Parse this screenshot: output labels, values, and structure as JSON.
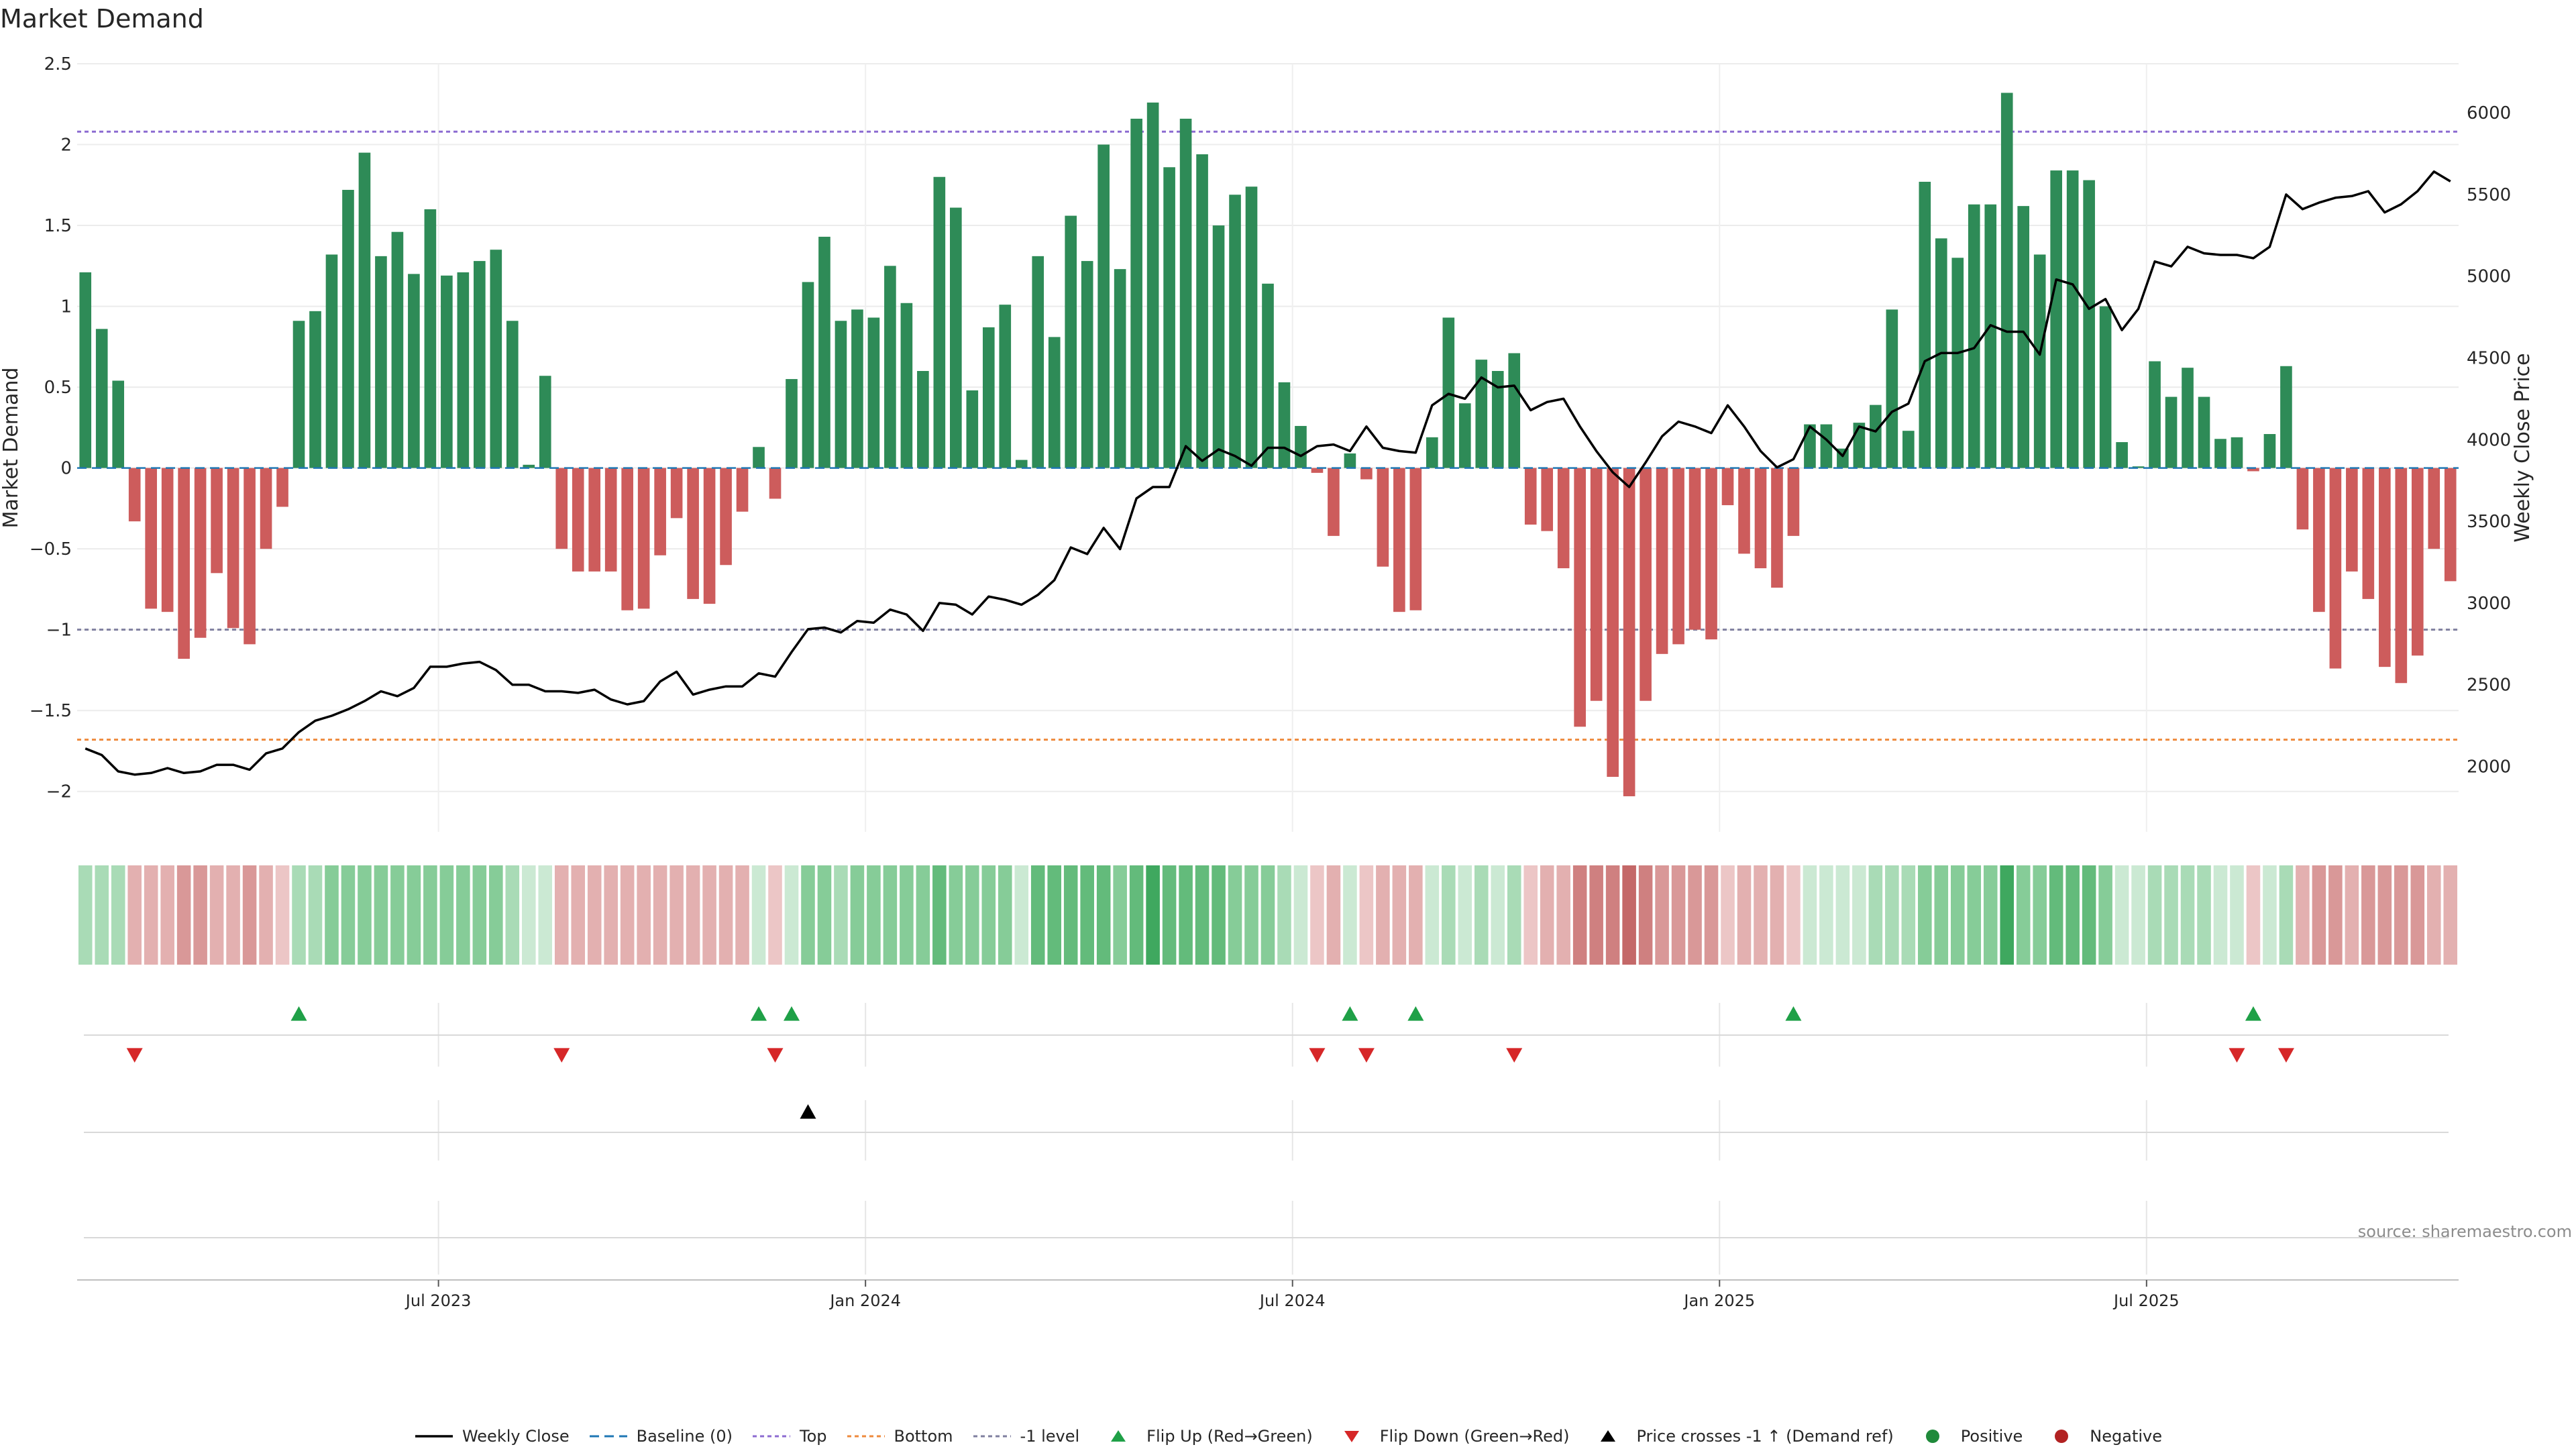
{
  "chart_data": {
    "type": "bar+line",
    "title": "Market Demand",
    "ylabel_left": "Market Demand",
    "ylabel_right": "Weekly Close Price",
    "ylim_left": [
      -2.25,
      2.5
    ],
    "ylim_right": [
      1600,
      6300
    ],
    "yticks_left": [
      2.5,
      2,
      1.5,
      1,
      0.5,
      0,
      -0.5,
      -1,
      -1.5,
      -2
    ],
    "yticks_left_labels": [
      "2.5",
      "2",
      "1.5",
      "1",
      "0.5",
      "0",
      "−0.5",
      "−1",
      "−1.5",
      "−2"
    ],
    "yticks_right": [
      6000,
      5500,
      5000,
      4500,
      4000,
      3500,
      3000,
      2500,
      2000
    ],
    "yticks_right_labels": [
      "6000",
      "5500",
      "5000",
      "4500",
      "4000",
      "3500",
      "3000",
      "2500",
      "2000"
    ],
    "reference_lines": {
      "top": 2.08,
      "bottom": -1.68,
      "minus_one": -1.0,
      "baseline": 0
    },
    "x_ticks": [
      {
        "index": 22,
        "label": "Jul 2023"
      },
      {
        "index": 48,
        "label": "Jan 2024"
      },
      {
        "index": 74,
        "label": "Jul 2024"
      },
      {
        "index": 100,
        "label": "Jan 2025"
      },
      {
        "index": 126,
        "label": "Jul 2025"
      }
    ],
    "demand": [
      1.21,
      0.86,
      0.54,
      -0.33,
      -0.87,
      -0.89,
      -1.18,
      -1.05,
      -0.65,
      -0.99,
      -1.09,
      -0.5,
      -0.24,
      0.91,
      0.97,
      1.32,
      1.72,
      1.95,
      1.31,
      1.46,
      1.2,
      1.6,
      1.19,
      1.21,
      1.28,
      1.35,
      0.91,
      0.02,
      0.57,
      -0.5,
      -0.64,
      -0.64,
      -0.64,
      -0.88,
      -0.87,
      -0.54,
      -0.31,
      -0.81,
      -0.84,
      -0.6,
      -0.27,
      0.13,
      -0.19,
      0.55,
      1.15,
      1.43,
      0.91,
      0.98,
      0.93,
      1.25,
      1.02,
      0.6,
      1.8,
      1.61,
      0.48,
      0.87,
      1.01,
      0.05,
      1.31,
      0.81,
      1.56,
      1.28,
      2.0,
      1.23,
      2.16,
      2.26,
      1.86,
      2.16,
      1.94,
      1.5,
      1.69,
      1.74,
      1.14,
      0.53,
      0.26,
      -0.03,
      -0.42,
      0.09,
      -0.07,
      -0.61,
      -0.89,
      -0.88,
      0.19,
      0.93,
      0.4,
      0.67,
      0.6,
      0.71,
      -0.35,
      -0.39,
      -0.62,
      -1.6,
      -1.44,
      -1.91,
      -2.03,
      -1.44,
      -1.15,
      -1.09,
      -1.0,
      -1.06,
      -0.23,
      -0.53,
      -0.62,
      -0.74,
      -0.42,
      0.27,
      0.27,
      0.12,
      0.28,
      0.39,
      0.98,
      0.23,
      1.77,
      1.42,
      1.3,
      1.63,
      1.63,
      2.32,
      1.62,
      1.32,
      1.84,
      1.84,
      1.78,
      1.0,
      0.16,
      0.01,
      0.66,
      0.44,
      0.62,
      0.44,
      0.18,
      0.19,
      -0.02,
      0.21,
      0.63,
      -0.38,
      -0.89,
      -1.24,
      -0.64,
      -0.81,
      -1.23,
      -1.33,
      -1.16,
      -0.5,
      -0.7
    ],
    "weekly_close": [
      2110,
      2070,
      1970,
      1950,
      1960,
      1990,
      1960,
      1970,
      2010,
      2010,
      1980,
      2080,
      2110,
      2210,
      2280,
      2310,
      2350,
      2400,
      2460,
      2430,
      2480,
      2610,
      2610,
      2630,
      2640,
      2590,
      2500,
      2500,
      2460,
      2460,
      2450,
      2470,
      2410,
      2380,
      2400,
      2520,
      2580,
      2440,
      2470,
      2490,
      2490,
      2570,
      2550,
      2700,
      2840,
      2850,
      2820,
      2890,
      2880,
      2960,
      2930,
      2830,
      3000,
      2990,
      2930,
      3040,
      3020,
      2990,
      3050,
      3140,
      3340,
      3300,
      3460,
      3330,
      3640,
      3710,
      3710,
      3960,
      3870,
      3940,
      3900,
      3840,
      3950,
      3950,
      3900,
      3960,
      3970,
      3930,
      4080,
      3950,
      3930,
      3920,
      4210,
      4280,
      4250,
      4380,
      4320,
      4330,
      4180,
      4230,
      4250,
      4080,
      3930,
      3800,
      3710,
      3860,
      4020,
      4110,
      4080,
      4040,
      4210,
      4080,
      3930,
      3830,
      3880,
      4080,
      4000,
      3900,
      4080,
      4050,
      4170,
      4220,
      4480,
      4530,
      4530,
      4560,
      4700,
      4660,
      4660,
      4520,
      4980,
      4950,
      4800,
      4860,
      4670,
      4800,
      5090,
      5060,
      5180,
      5140,
      5130,
      5130,
      5110,
      5180,
      5500,
      5410,
      5450,
      5480,
      5490,
      5520,
      5390,
      5440,
      5520,
      5640,
      5580
    ],
    "heat_strip": [
      2,
      2,
      2,
      -2,
      -2,
      -2,
      -3,
      -3,
      -2,
      -2,
      -3,
      -2,
      -1,
      2,
      2,
      3,
      3,
      3,
      3,
      3,
      3,
      3,
      3,
      3,
      3,
      3,
      2,
      1,
      1,
      -2,
      -2,
      -2,
      -2,
      -2,
      -2,
      -2,
      -2,
      -2,
      -2,
      -2,
      -2,
      1,
      -1,
      1,
      3,
      3,
      2,
      3,
      3,
      3,
      3,
      3,
      4,
      3,
      3,
      3,
      3,
      1,
      4,
      4,
      4,
      4,
      4,
      3,
      4,
      5,
      4,
      4,
      4,
      4,
      3,
      3,
      3,
      2,
      1,
      -1,
      -2,
      1,
      -1,
      -2,
      -2,
      -2,
      1,
      2,
      1,
      2,
      1,
      2,
      -1,
      -2,
      -2,
      -4,
      -4,
      -4,
      -5,
      -4,
      -3,
      -3,
      -3,
      -3,
      -1,
      -2,
      -2,
      -2,
      -1,
      1,
      1,
      1,
      1,
      2,
      2,
      2,
      3,
      3,
      3,
      3,
      3,
      5,
      3,
      3,
      4,
      4,
      4,
      3,
      1,
      1,
      2,
      2,
      2,
      2,
      1,
      1,
      -1,
      1,
      2,
      -2,
      -3,
      -3,
      -2,
      -3,
      -3,
      -3,
      -3,
      -2,
      -2
    ],
    "flip_up": [
      13,
      41,
      43,
      77,
      81,
      104,
      132
    ],
    "flip_down": [
      3,
      29,
      42,
      75,
      78,
      87,
      131,
      134
    ],
    "price_cross": [
      44
    ],
    "positive_dots": [],
    "negative_dots": []
  },
  "colors": {
    "positive_bar": "#2e8b57",
    "negative_bar": "#cd5c5c",
    "close_line": "#000000",
    "baseline": "#1f77b4",
    "top": "#8c6bd1",
    "bottom": "#ee8a3c",
    "minus_one": "#7f7f9f",
    "flip_up": "#1fa047",
    "flip_down": "#d62728",
    "price_cross": "#000000",
    "positive_dot": "#1f8a3a",
    "negative_dot": "#b22222"
  },
  "title": "Market Demand",
  "source": "source: sharemaestro.com",
  "legend": [
    {
      "key": "close",
      "label": "Weekly Close"
    },
    {
      "key": "baseline",
      "label": "Baseline (0)"
    },
    {
      "key": "top",
      "label": "Top"
    },
    {
      "key": "bottom",
      "label": "Bottom"
    },
    {
      "key": "minus_one",
      "label": "-1 level"
    },
    {
      "key": "flip_up",
      "label": "Flip Up (Red→Green)"
    },
    {
      "key": "flip_down",
      "label": "Flip Down (Green→Red)"
    },
    {
      "key": "price_cross",
      "label": "Price crosses -1 ↑ (Demand ref)"
    },
    {
      "key": "positive",
      "label": "Positive"
    },
    {
      "key": "negative",
      "label": "Negative"
    }
  ]
}
